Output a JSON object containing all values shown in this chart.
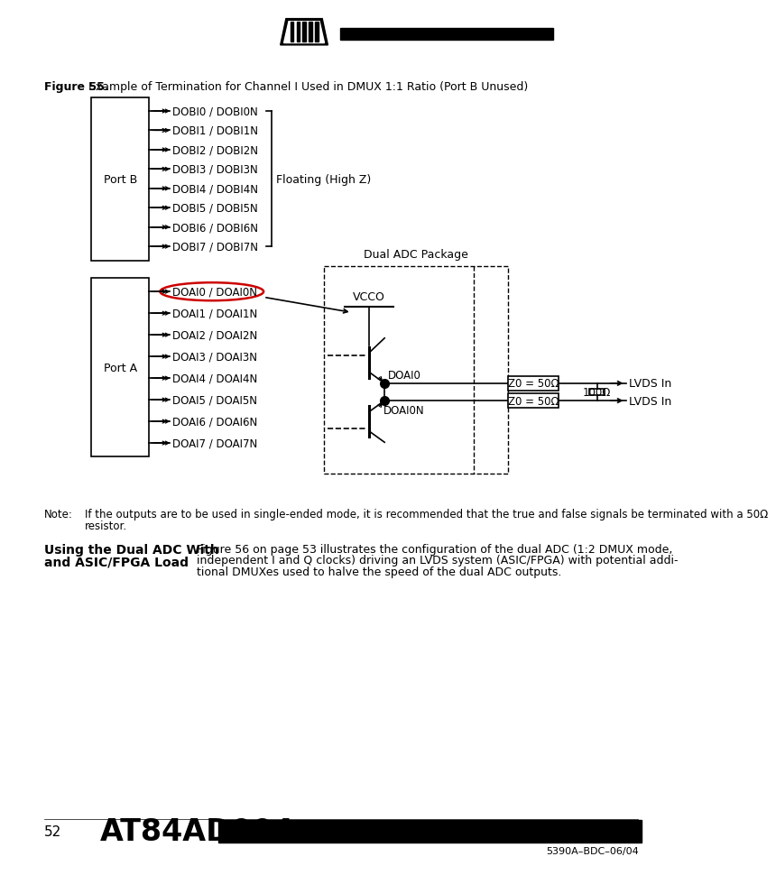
{
  "title_bold": "Figure 55.",
  "title_text": "  Example of Termination for Channel I Used in DMUX 1:1 Ratio (Port B Unused)",
  "port_b_signals": [
    "DOBI0 / DOBI0N",
    "DOBI1 / DOBI1N",
    "DOBI2 / DOBI2N",
    "DOBI3 / DOBI3N",
    "DOBI4 / DOBI4N",
    "DOBI5 / DOBI5N",
    "DOBI6 / DOBI6N",
    "DOBI7 / DOBI7N"
  ],
  "port_a_signals": [
    "DOAI0 / DOAI0N",
    "DOAI1 / DOAI1N",
    "DOAI2 / DOAI2N",
    "DOAI3 / DOAI3N",
    "DOAI4 / DOAI4N",
    "DOAI5 / DOAI5N",
    "DOAI6 / DOAI6N",
    "DOAI7 / DOAI7N"
  ],
  "floating_text": "Floating (High Z)",
  "dual_adc_text": "Dual ADC Package",
  "vcco_text": "VCCO",
  "doai0_label": "DOAI0",
  "doai0n_label": "DOAI0N",
  "z0_50_text": "Z0 = 50Ω",
  "r100_text": "100Ω",
  "lvds_in_text": "LVDS In",
  "port_a_text": "Port A",
  "port_b_text": "Port B",
  "note_label": "Note:",
  "note_body": "If the outputs are to be used in single-ended mode, it is recommended that the true and false signals be terminated with a 50Ω\nresistor.",
  "section_title_line1": "Using the Dual ADC With",
  "section_title_line2": "and ASIC/FPGA Load",
  "section_body_line1": "Figure 56 on page 53 illustrates the configuration of the dual ADC (1:2 DMUX mode,",
  "section_body_line2": "independent I and Q clocks) driving an LVDS system (ASIC/FPGA) with potential addi-",
  "section_body_line3": "tional DMUXes used to halve the speed of the dual ADC outputs.",
  "page_num": "52",
  "chip_model": "AT84AD004",
  "doc_ref": "5390A–BDC–06/04",
  "bg_color": "#ffffff"
}
